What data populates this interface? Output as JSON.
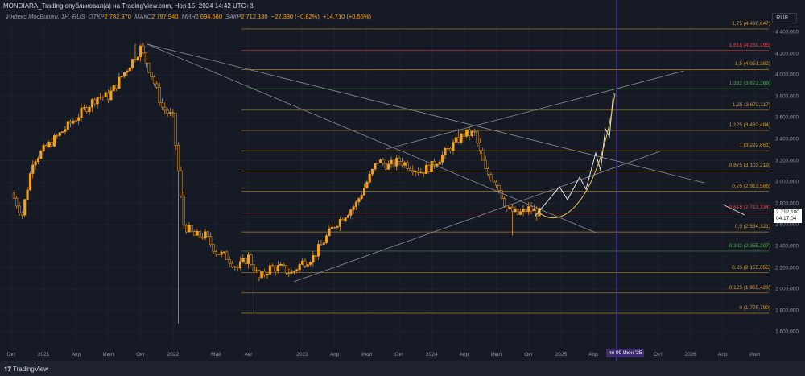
{
  "header": {
    "published": "MONDIARA_Trading опубликовал(а) на TradingView.com, Ноя 15, 2024 14:42 UTC+3"
  },
  "ohlc": {
    "symbol": "Индекс МосБиржи, 1Н, RUS",
    "open_label": "ОТКР",
    "open": "2 782,970",
    "high_label": "МАКС",
    "high": "2 797,940",
    "low_label": "МИН",
    "low": "2 694,560",
    "close_label": "ЗАКР",
    "close": "2 712,180",
    "change": "−22,380 (−0,82%)",
    "change2": "+14,710 (+0,55%)"
  },
  "currency": "RUB",
  "last_price": {
    "value": "2 712,180",
    "countdown": "04:17:04"
  },
  "crosshair_label": "пн 09 Июн '25",
  "brand": "TradingView",
  "colors": {
    "up": "#f7a21b",
    "down": "#1b1b1b",
    "fib_orange": "#d39a2a",
    "fib_red": "#e0474c",
    "fib_green": "#4caf50",
    "grid": "#232733",
    "crosshair": "#6a3fd0"
  },
  "chart_data": {
    "type": "line",
    "title": "Индекс МосБиржи, 1Н",
    "ylabel": "RUB",
    "ylim": [
      1500,
      4500
    ],
    "y_ticks": [
      "4 400,000",
      "4 200,000",
      "4 000,000",
      "3 800,000",
      "3 600,000",
      "3 400,000",
      "3 200,000",
      "3 000,000",
      "2 800,000",
      "2 600,000",
      "2 400,000",
      "2 200,000",
      "2 000,000",
      "1 800,000",
      "1 600,000"
    ],
    "y_tick_values": [
      4400,
      4200,
      4000,
      3800,
      3600,
      3400,
      3200,
      3000,
      2800,
      2600,
      2400,
      2200,
      2000,
      1800,
      1600
    ],
    "x_ticks": [
      {
        "label": "Окт",
        "m": 0
      },
      {
        "label": "2021",
        "m": 3
      },
      {
        "label": "Апр",
        "m": 6
      },
      {
        "label": "Июл",
        "m": 9
      },
      {
        "label": "Окт",
        "m": 12
      },
      {
        "label": "2022",
        "m": 15
      },
      {
        "label": "Май",
        "m": 19
      },
      {
        "label": "Авг",
        "m": 22
      },
      {
        "label": "2023",
        "m": 27
      },
      {
        "label": "Апр",
        "m": 30
      },
      {
        "label": "Июл",
        "m": 33
      },
      {
        "label": "Окт",
        "m": 36
      },
      {
        "label": "2024",
        "m": 39
      },
      {
        "label": "Апр",
        "m": 42
      },
      {
        "label": "Июл",
        "m": 45
      },
      {
        "label": "Окт",
        "m": 48
      },
      {
        "label": "2025",
        "m": 51
      },
      {
        "label": "Апр",
        "m": 54
      },
      {
        "label": "Окт",
        "m": 60
      },
      {
        "label": "2026",
        "m": 63
      },
      {
        "label": "Апр",
        "m": 66
      },
      {
        "label": "Июл",
        "m": 69
      }
    ],
    "monthly_closes": [
      {
        "m": 0,
        "c": 2900
      },
      {
        "m": 1,
        "c": 2700
      },
      {
        "m": 2,
        "c": 3200
      },
      {
        "m": 3,
        "c": 3300
      },
      {
        "m": 4,
        "c": 3400
      },
      {
        "m": 5,
        "c": 3500
      },
      {
        "m": 6,
        "c": 3600
      },
      {
        "m": 7,
        "c": 3700
      },
      {
        "m": 8,
        "c": 3800
      },
      {
        "m": 9,
        "c": 3800
      },
      {
        "m": 10,
        "c": 3950
      },
      {
        "m": 11,
        "c": 4100
      },
      {
        "m": 12,
        "c": 4250,
        "h": 4290
      },
      {
        "m": 13,
        "c": 4000
      },
      {
        "m": 14,
        "c": 3700
      },
      {
        "m": 15,
        "c": 3600
      },
      {
        "m": 16,
        "c": 2600,
        "l": 1680
      },
      {
        "m": 17,
        "c": 2500
      },
      {
        "m": 18,
        "c": 2500
      },
      {
        "m": 19,
        "c": 2350
      },
      {
        "m": 20,
        "c": 2300
      },
      {
        "m": 21,
        "c": 2200
      },
      {
        "m": 22,
        "c": 2300
      },
      {
        "m": 23,
        "c": 2100,
        "l": 1780
      },
      {
        "m": 24,
        "c": 2200
      },
      {
        "m": 25,
        "c": 2200
      },
      {
        "m": 26,
        "c": 2150
      },
      {
        "m": 27,
        "c": 2250
      },
      {
        "m": 28,
        "c": 2300
      },
      {
        "m": 29,
        "c": 2450
      },
      {
        "m": 30,
        "c": 2600
      },
      {
        "m": 31,
        "c": 2700
      },
      {
        "m": 32,
        "c": 2800
      },
      {
        "m": 33,
        "c": 3000
      },
      {
        "m": 34,
        "c": 3200
      },
      {
        "m": 35,
        "c": 3150
      },
      {
        "m": 36,
        "c": 3200
      },
      {
        "m": 37,
        "c": 3150
      },
      {
        "m": 38,
        "c": 3100
      },
      {
        "m": 39,
        "c": 3150
      },
      {
        "m": 40,
        "c": 3250
      },
      {
        "m": 41,
        "c": 3350
      },
      {
        "m": 42,
        "c": 3450,
        "h": 3500
      },
      {
        "m": 43,
        "c": 3450
      },
      {
        "m": 44,
        "c": 3100
      },
      {
        "m": 45,
        "c": 3000
      },
      {
        "m": 46,
        "c": 2750
      },
      {
        "m": 47,
        "c": 2700,
        "l": 2500
      },
      {
        "m": 48,
        "c": 2750
      },
      {
        "m": 49,
        "c": 2712
      }
    ],
    "fib_levels": [
      {
        "label": "1,75 (4 430,647)",
        "v": 4430.647,
        "c": "o"
      },
      {
        "label": "1,618 (4 230,395)",
        "v": 4230.395,
        "c": "r"
      },
      {
        "label": "1,5 (4 051,382)",
        "v": 4051.382,
        "c": "o"
      },
      {
        "label": "1,382 (3 872,369)",
        "v": 3872.369,
        "c": "g"
      },
      {
        "label": "1,25 (3 672,117)",
        "v": 3672.117,
        "c": "o"
      },
      {
        "label": "1,125 (3 482,484)",
        "v": 3482.484,
        "c": "o"
      },
      {
        "label": "1 (3 292,851)",
        "v": 3292.851,
        "c": "o"
      },
      {
        "label": "0,875 (3 103,219)",
        "v": 3103.219,
        "c": "o"
      },
      {
        "label": "0,75 (2 913,586)",
        "v": 2913.586,
        "c": "o"
      },
      {
        "label": "0,618 (2 713,334)",
        "v": 2713.334,
        "c": "r"
      },
      {
        "label": "0,5 (2 534,321)",
        "v": 2534.321,
        "c": "o"
      },
      {
        "label": "0,382 (2 355,307)",
        "v": 2355.307,
        "c": "g"
      },
      {
        "label": "0,25 (2 155,055)",
        "v": 2155.055,
        "c": "o"
      },
      {
        "label": "0,125 (1 965,423)",
        "v": 1965.423,
        "c": "o"
      },
      {
        "label": "0 (1 775,790)",
        "v": 1775.79,
        "c": "o"
      }
    ]
  }
}
